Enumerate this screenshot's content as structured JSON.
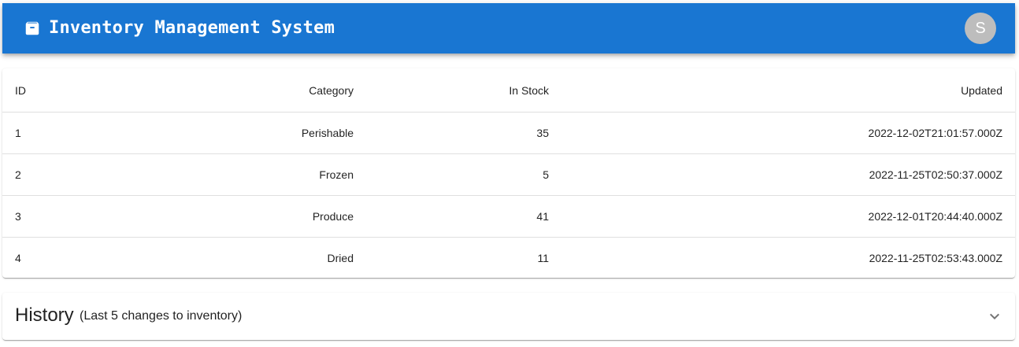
{
  "header": {
    "title": "Inventory Management System",
    "logo_icon": "archive-box-icon",
    "avatar_letter": "S",
    "background_color": "#1976d2",
    "avatar_color": "#bdbdbd"
  },
  "inventory_table": {
    "columns": {
      "id": "ID",
      "category": "Category",
      "in_stock": "In Stock",
      "updated": "Updated"
    },
    "rows": [
      {
        "id": "1",
        "category": "Perishable",
        "in_stock": "35",
        "updated": "2022-12-02T21:01:57.000Z"
      },
      {
        "id": "2",
        "category": "Frozen",
        "in_stock": "5",
        "updated": "2022-11-25T02:50:37.000Z"
      },
      {
        "id": "3",
        "category": "Produce",
        "in_stock": "41",
        "updated": "2022-12-01T20:44:40.000Z"
      },
      {
        "id": "4",
        "category": "Dried",
        "in_stock": "11",
        "updated": "2022-11-25T02:53:43.000Z"
      }
    ]
  },
  "history": {
    "title": "History",
    "subtitle": "(Last 5 changes to inventory)",
    "expand_icon": "chevron-down-icon"
  }
}
